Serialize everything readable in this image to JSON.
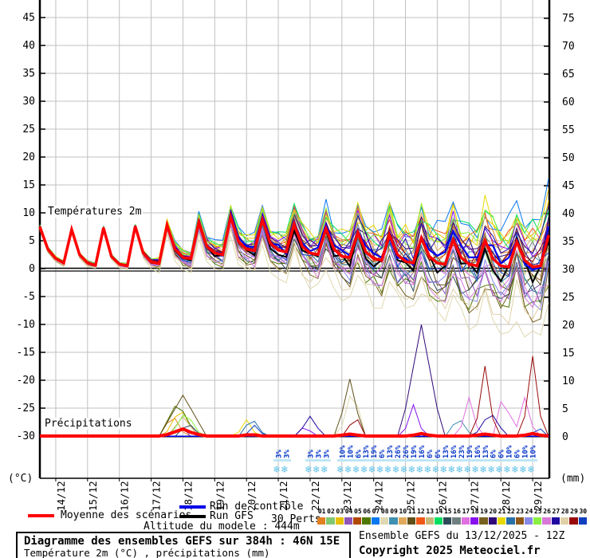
{
  "chart": {
    "left_axis": {
      "unit": "(°C)",
      "ticks": [
        45,
        40,
        35,
        30,
        25,
        20,
        15,
        10,
        5,
        0,
        -5,
        -10,
        -15,
        -20,
        -25,
        -30
      ]
    },
    "right_axis": {
      "unit": "(mm)",
      "ticks": [
        75,
        70,
        65,
        60,
        55,
        50,
        45,
        40,
        35,
        30,
        25,
        20,
        15,
        10,
        5,
        0
      ]
    },
    "dates": [
      "14/12",
      "15/12",
      "16/12",
      "17/12",
      "18/12",
      "19/12",
      "20/12",
      "21/12",
      "22/12",
      "23/12",
      "24/12",
      "25/12",
      "26/12",
      "27/12",
      "28/12",
      "29/12"
    ],
    "labels": {
      "temperature": "Températures 2m",
      "precipitation": "Précipitations"
    }
  },
  "chart_data": {
    "type": "line",
    "t_step_hours": 6,
    "t_max_hours": 384,
    "temp_axis_range": [
      -30,
      45
    ],
    "precip_axis_range": [
      0,
      75
    ],
    "mean_temp": [
      7.5,
      3.5,
      1.8,
      1.0,
      7.0,
      2.5,
      1.0,
      0.6,
      7.3,
      2.2,
      0.8,
      0.5,
      7.6,
      2.8,
      1.2,
      0.9,
      7.8,
      3.5,
      2.0,
      1.8,
      8.3,
      4.0,
      2.8,
      2.5,
      9.3,
      4.8,
      3.5,
      3.2,
      8.8,
      4.5,
      3.3,
      3.0,
      8.0,
      4.0,
      2.8,
      2.5,
      7.2,
      3.5,
      2.2,
      2.0,
      6.5,
      3.0,
      1.8,
      1.5,
      6.0,
      2.5,
      1.3,
      1.0,
      5.5,
      2.2,
      1.0,
      0.8,
      5.2,
      2.0,
      0.8,
      0.5,
      5.0,
      1.8,
      0.5,
      0.3,
      4.8,
      1.5,
      0.3,
      0.5,
      6.0
    ],
    "spread": [
      0.3,
      0.3,
      0.3,
      0.3,
      0.3,
      0.3,
      0.3,
      0.3,
      0.3,
      0.3,
      0.3,
      0.3,
      0.3,
      0.4,
      0.5,
      0.7,
      0.8,
      0.9,
      1.0,
      1.1,
      1.3,
      1.4,
      1.5,
      1.6,
      1.7,
      1.9,
      2.0,
      2.1,
      2.2,
      2.3,
      2.5,
      2.6,
      2.7,
      2.8,
      2.9,
      3.0,
      3.2,
      3.3,
      3.4,
      3.5,
      3.6,
      3.8,
      3.9,
      4.0,
      4.1,
      4.2,
      4.4,
      4.5,
      4.6,
      4.7,
      4.8,
      5.0,
      5.1,
      5.2,
      5.3,
      5.4,
      5.5,
      5.7,
      5.8,
      5.9,
      6.0,
      6.1,
      6.3,
      6.4,
      6.5
    ],
    "member_bias": [
      0.5,
      -0.3,
      0.9,
      -0.7,
      0.2,
      -1.1,
      1.2,
      -2.0,
      0.1,
      0.6,
      -0.5,
      0.8,
      -0.2,
      1.0,
      -0.9,
      0.3,
      -0.6,
      0.7,
      -1.2,
      0.4,
      1.1,
      -0.4,
      0.0,
      -0.8,
      0.9,
      -1.0,
      0.5,
      -1.4,
      0.2,
      -0.1
    ],
    "control_bias": 0.15,
    "gfs_bias": -0.2,
    "mean_precip": [
      0.15,
      0.15,
      0.15,
      0.15,
      0.15,
      0.15,
      0.15,
      0.15,
      0.15,
      0.15,
      0.15,
      0.15,
      0.15,
      0.15,
      0.15,
      0.15,
      0.4,
      0.9,
      1.4,
      0.8,
      0.4,
      0.15,
      0.15,
      0.15,
      0.15,
      0.15,
      0.35,
      0.35,
      0.15,
      0.15,
      0.15,
      0.15,
      0.15,
      0.15,
      0.15,
      0.15,
      0.15,
      0.15,
      0.3,
      0.5,
      0.3,
      0.15,
      0.15,
      0.15,
      0.15,
      0.15,
      0.15,
      0.3,
      0.6,
      0.3,
      0.15,
      0.15,
      0.15,
      0.15,
      0.15,
      0.3,
      0.5,
      0.3,
      0.15,
      0.15,
      0.15,
      0.3,
      0.6,
      0.3,
      0.15
    ],
    "precip_events": [
      {
        "member": 10,
        "t": 108,
        "peak": 7.4,
        "width": 18
      },
      {
        "member": 5,
        "t": 104,
        "peak": 6.3,
        "width": 14
      },
      {
        "member": 2,
        "t": 106,
        "peak": 5.2,
        "width": 12
      },
      {
        "member": 24,
        "t": 110,
        "peak": 4.5,
        "width": 12
      },
      {
        "member": 0,
        "t": 100,
        "peak": 4.0,
        "width": 10
      },
      {
        "member": 12,
        "t": 108,
        "peak": 3.5,
        "width": 12
      },
      {
        "member": 14,
        "t": 112,
        "peak": 2.5,
        "width": 10
      },
      {
        "member": 3,
        "t": 106,
        "peak": 2.0,
        "width": 8
      },
      {
        "member": 21,
        "t": 160,
        "peak": 3.4,
        "width": 10
      },
      {
        "member": 20,
        "t": 156,
        "peak": 3.0,
        "width": 8
      },
      {
        "member": 29,
        "t": 162,
        "peak": 2.0,
        "width": 8
      },
      {
        "member": 26,
        "t": 204,
        "peak": 3.6,
        "width": 10
      },
      {
        "member": 17,
        "t": 200,
        "peak": 2.0,
        "width": 8
      },
      {
        "member": 10,
        "t": 234,
        "peak": 10.3,
        "width": 10
      },
      {
        "member": 7,
        "t": 236,
        "peak": 9.0,
        "width": 10
      },
      {
        "member": 28,
        "t": 238,
        "peak": 4.0,
        "width": 8
      },
      {
        "member": 19,
        "t": 288,
        "peak": 20.0,
        "width": 16
      },
      {
        "member": 17,
        "t": 282,
        "peak": 5.7,
        "width": 8
      },
      {
        "member": 8,
        "t": 316,
        "peak": 3.5,
        "width": 10
      },
      {
        "member": 16,
        "t": 324,
        "peak": 7.0,
        "width": 8
      },
      {
        "member": 28,
        "t": 336,
        "peak": 12.6,
        "width": 8
      },
      {
        "member": 26,
        "t": 340,
        "peak": 4.5,
        "width": 12
      },
      {
        "member": 16,
        "t": 350,
        "peak": 8.3,
        "width": 8
      },
      {
        "member": 16,
        "t": 366,
        "peak": 7.0,
        "width": 8
      },
      {
        "member": 28,
        "t": 372,
        "peak": 14.4,
        "width": 8
      },
      {
        "member": 29,
        "t": 376,
        "peak": 2.0,
        "width": 6
      }
    ],
    "snow_risk": [
      {
        "t": 180,
        "pct": "3%"
      },
      {
        "t": 186,
        "pct": "3%"
      },
      {
        "t": 204,
        "pct": "3%"
      },
      {
        "t": 210,
        "pct": "3%"
      },
      {
        "t": 216,
        "pct": "3%"
      },
      {
        "t": 228,
        "pct": "10%"
      },
      {
        "t": 234,
        "pct": "10%"
      },
      {
        "t": 240,
        "pct": "6%"
      },
      {
        "t": 246,
        "pct": "13%"
      },
      {
        "t": 252,
        "pct": "19%"
      },
      {
        "t": 258,
        "pct": "6%"
      },
      {
        "t": 264,
        "pct": "13%"
      },
      {
        "t": 270,
        "pct": "26%"
      },
      {
        "t": 276,
        "pct": "26%"
      },
      {
        "t": 282,
        "pct": "19%"
      },
      {
        "t": 288,
        "pct": "16%"
      },
      {
        "t": 294,
        "pct": "6%"
      },
      {
        "t": 300,
        "pct": "6%"
      },
      {
        "t": 306,
        "pct": "13%"
      },
      {
        "t": 312,
        "pct": "16%"
      },
      {
        "t": 318,
        "pct": "23%"
      },
      {
        "t": 324,
        "pct": "19%"
      },
      {
        "t": 330,
        "pct": "16%"
      },
      {
        "t": 336,
        "pct": "13%"
      },
      {
        "t": 342,
        "pct": "6%"
      },
      {
        "t": 348,
        "pct": "6%"
      },
      {
        "t": 354,
        "pct": "10%"
      },
      {
        "t": 360,
        "pct": "6%"
      },
      {
        "t": 366,
        "pct": "10%"
      },
      {
        "t": 372,
        "pct": "10%"
      }
    ],
    "colors": {
      "mean": "#FF0000",
      "control": "#0000E8",
      "gfs": "#000000",
      "snow_flake": "#5FC0E8",
      "snow_text": "#0030C8",
      "grid": "#C0C0C0",
      "members": [
        "#E08020",
        "#80C870",
        "#E8C000",
        "#9055B8",
        "#B04800",
        "#507800",
        "#0878F0",
        "#E0D8B0",
        "#4090B0",
        "#E0A858",
        "#605018",
        "#F05818",
        "#C8B878",
        "#00E060",
        "#2E4A58",
        "#708080",
        "#E070E0",
        "#8810F0",
        "#786020",
        "#300878",
        "#E8D800",
        "#2870A8",
        "#905818",
        "#8888E8",
        "#88F040",
        "#D878D8",
        "#2008A0",
        "#E0D0A8",
        "#980808",
        "#1040C0"
      ]
    },
    "title": "Diagramme des ensembles GEFS sur 384h : 46N 15E",
    "ylabel_left": "(°C)",
    "ylabel_right": "(mm)"
  },
  "legend": {
    "mean": {
      "label": "Moyenne des scénarios",
      "color": "#FF0000"
    },
    "control": {
      "label": "Run de contrôle",
      "color": "#0000E8"
    },
    "gfs": {
      "label": "Run GFS",
      "color": "#000000"
    },
    "perts_label": "30 Perts.",
    "pert_numbers": [
      "01",
      "02",
      "03",
      "04",
      "05",
      "06",
      "07",
      "08",
      "09",
      "10",
      "11",
      "12",
      "13",
      "14",
      "15",
      "16",
      "17",
      "18",
      "19",
      "20",
      "21",
      "22",
      "23",
      "24",
      "25",
      "26",
      "27",
      "28",
      "29",
      "30"
    ]
  },
  "footer": {
    "altitude": "Altitude du modele : 444m",
    "title": "Diagramme des ensembles GEFS sur 384h : 46N 15E",
    "subtitle": "Température 2m (°C) , précipitations (mm)",
    "run_info": "Ensemble GEFS du 13/12/2025 - 12Z",
    "copyright": "Copyright 2025 Meteociel.fr"
  }
}
